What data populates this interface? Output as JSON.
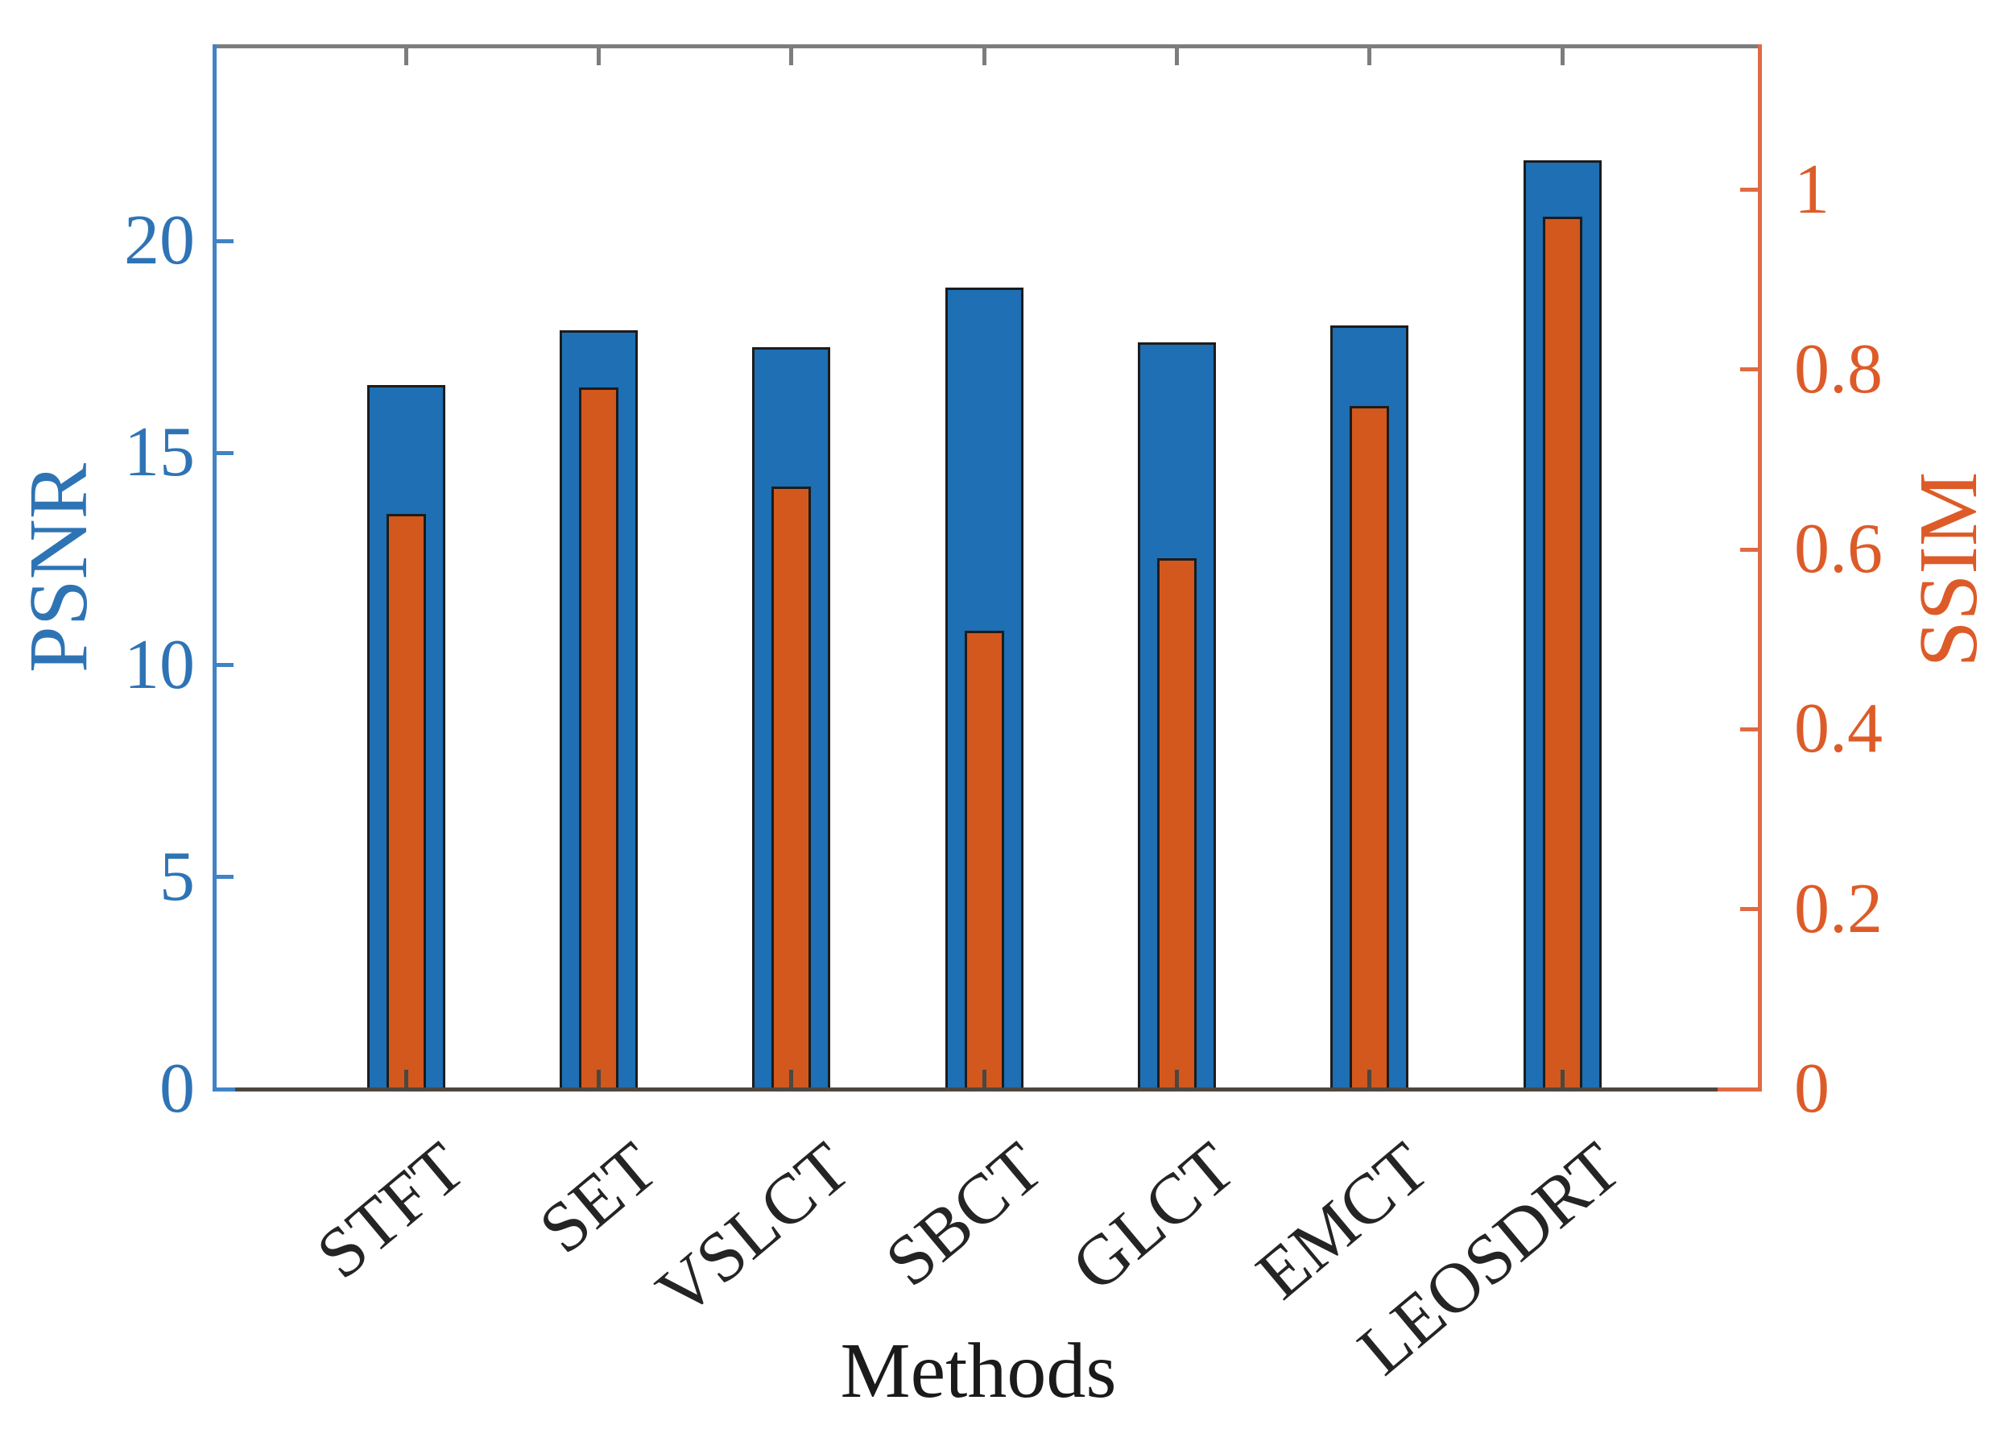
{
  "chart_data": {
    "type": "bar",
    "title": "",
    "xlabel": "Methods",
    "ylabel_left": "PSNR",
    "ylabel_right": "SSIM",
    "categories": [
      "STFT",
      "SET",
      "VSLCT",
      "SBCT",
      "GLCT",
      "EMCT",
      "LEOSDRT"
    ],
    "series": [
      {
        "name": "PSNR",
        "axis": "left",
        "values": [
          16.6,
          17.9,
          17.5,
          18.9,
          17.6,
          18.0,
          21.9
        ]
      },
      {
        "name": "SSIM",
        "axis": "right",
        "values": [
          0.64,
          0.78,
          0.67,
          0.51,
          0.59,
          0.76,
          0.97
        ]
      }
    ],
    "left_axis": {
      "ticks": [
        0,
        5,
        10,
        15,
        20
      ],
      "tick_labels": [
        "0",
        "5",
        "10",
        "15",
        "20"
      ],
      "ylim": [
        0,
        24.6
      ]
    },
    "right_axis": {
      "ticks": [
        0,
        0.2,
        0.4,
        0.6,
        0.8,
        1
      ],
      "tick_labels": [
        "0",
        "0.2",
        "0.4",
        "0.6",
        "0.8",
        "1"
      ],
      "ylim": [
        0,
        1.16
      ]
    },
    "grid": false,
    "legend": "none",
    "bar_style": "nested-overlay"
  },
  "colors": {
    "bar_blue": "#1E6FB3",
    "bar_orange": "#D2581E",
    "bar_border": "#1C1C1C",
    "spine_left": "#4183C4",
    "spine_right": "#E06A43",
    "spine_top": "#7D7D7D",
    "spine_bottom": "#4C4740",
    "tick_label_blue": "#2E74B5",
    "tick_label_orange": "#DD5B28",
    "category_label": "#242424",
    "xlabel_color": "#1A1A1A"
  }
}
